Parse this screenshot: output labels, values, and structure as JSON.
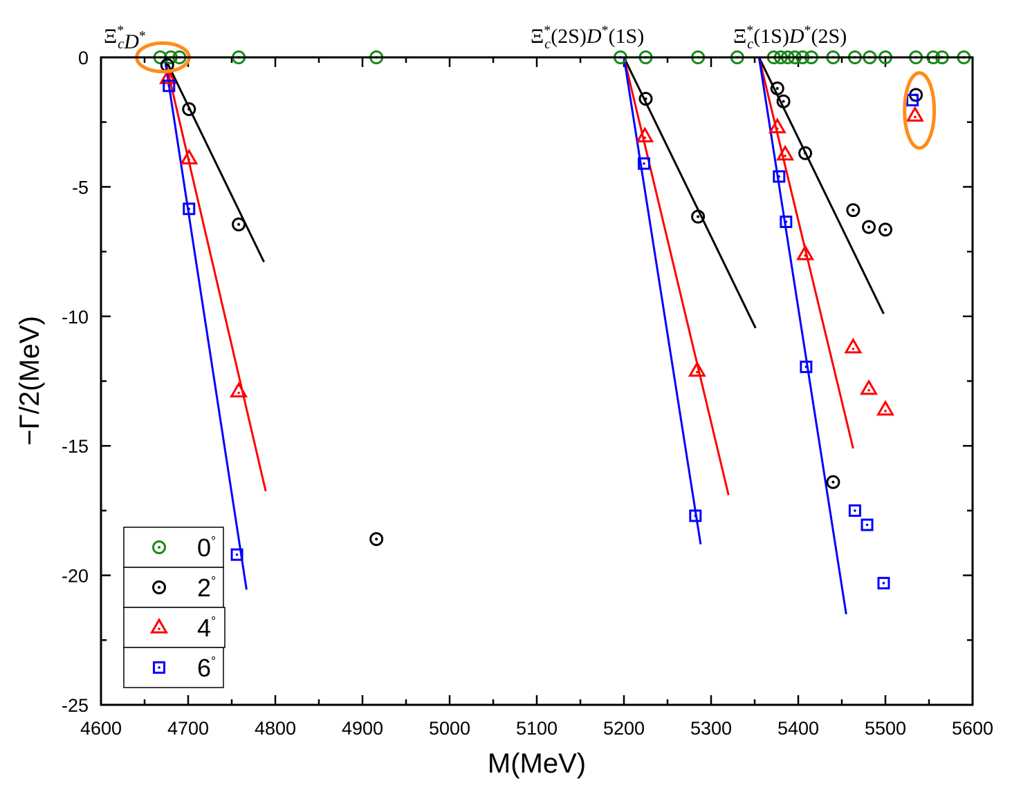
{
  "chart_data": {
    "type": "scatter",
    "title": "",
    "xlabel": "M(MeV)",
    "ylabel": "−Γ/2(MeV)",
    "xlim": [
      4600,
      5600
    ],
    "ylim": [
      -25,
      0
    ],
    "xticks": [
      4600,
      4700,
      4800,
      4900,
      5000,
      5100,
      5200,
      5300,
      5400,
      5500,
      5600
    ],
    "xtick_labels": [
      "4600",
      "4700",
      "4800",
      "4900",
      "5000",
      "5100",
      "5200",
      "5300",
      "5400",
      "5500",
      "5600"
    ],
    "yticks": [
      0,
      -5,
      -10,
      -15,
      -20,
      -25
    ],
    "ytick_labels": [
      "0",
      "-5",
      "-10",
      "-15",
      "-20",
      "-25"
    ],
    "grid": false,
    "legend_position": "bottom-left",
    "colors": {
      "0": "#1a8a1a",
      "2": "#000000",
      "4": "#ff0000",
      "6": "#0000ff",
      "highlight": "#ff8c1a"
    },
    "thresholds": [
      {
        "id": "xicd",
        "label_base": "Ξ",
        "label_sub": "c",
        "label_rest": "D",
        "label_full": "Ξ*cD*",
        "m": 4673
      },
      {
        "id": "xi2s",
        "label_base": "Ξ",
        "label_sub": "c",
        "label_mid": "(2S)",
        "label_rest": "D",
        "label_tail": "(1S)",
        "label_full": "Ξ*c(2S)D*(1S)",
        "m": 5200
      },
      {
        "id": "xi1s",
        "label_base": "Ξ",
        "label_sub": "c",
        "label_mid": "(1S)",
        "label_rest": "D",
        "label_tail": "(2S)",
        "label_full": "Ξ*c(1S)D*(2S)",
        "m": 5355
      }
    ],
    "series": [
      {
        "name": "0°",
        "angle": "0",
        "marker": "circle",
        "points": [
          [
            4668,
            0
          ],
          [
            4680,
            0
          ],
          [
            4690,
            0
          ],
          [
            4758,
            0
          ],
          [
            4916,
            0
          ],
          [
            5196,
            0
          ],
          [
            5225,
            0
          ],
          [
            5285,
            0
          ],
          [
            5330,
            0
          ],
          [
            5372,
            0
          ],
          [
            5380,
            0
          ],
          [
            5388,
            0
          ],
          [
            5396,
            0
          ],
          [
            5405,
            0
          ],
          [
            5415,
            0
          ],
          [
            5440,
            0
          ],
          [
            5465,
            0
          ],
          [
            5482,
            0
          ],
          [
            5500,
            0
          ],
          [
            5535,
            0
          ],
          [
            5555,
            0
          ],
          [
            5565,
            0
          ],
          [
            5590,
            0
          ]
        ]
      },
      {
        "name": "2°",
        "angle": "2",
        "marker": "circle",
        "points": [
          [
            4676,
            -0.3
          ],
          [
            4701,
            -2.0
          ],
          [
            4758,
            -6.45
          ],
          [
            4916,
            -18.6
          ],
          [
            5225,
            -1.6
          ],
          [
            5285,
            -6.15
          ],
          [
            5376,
            -1.2
          ],
          [
            5383,
            -1.7
          ],
          [
            5408,
            -3.7
          ],
          [
            5440,
            -16.4
          ],
          [
            5463,
            -5.9
          ],
          [
            5481,
            -6.55
          ],
          [
            5500,
            -6.65
          ],
          [
            5535,
            -1.45
          ]
        ]
      },
      {
        "name": "4°",
        "angle": "4",
        "marker": "triangle",
        "points": [
          [
            4677,
            -0.8
          ],
          [
            4701,
            -3.9
          ],
          [
            4758,
            -12.9
          ],
          [
            5224,
            -3.05
          ],
          [
            5284,
            -12.1
          ],
          [
            5376,
            -2.7
          ],
          [
            5385,
            -3.75
          ],
          [
            5408,
            -7.6
          ],
          [
            5463,
            -11.2
          ],
          [
            5481,
            -12.8
          ],
          [
            5500,
            -13.6
          ],
          [
            5534,
            -2.25
          ]
        ]
      },
      {
        "name": "6°",
        "angle": "6",
        "marker": "square",
        "points": [
          [
            4678,
            -1.1
          ],
          [
            4701,
            -5.85
          ],
          [
            4756,
            -19.2
          ],
          [
            5223,
            -4.1
          ],
          [
            5282,
            -17.7
          ],
          [
            5378,
            -4.6
          ],
          [
            5386,
            -6.35
          ],
          [
            5409,
            -11.95
          ],
          [
            5465,
            -17.5
          ],
          [
            5479,
            -18.05
          ],
          [
            5498,
            -20.3
          ],
          [
            5531,
            -1.65
          ]
        ]
      }
    ],
    "lines": [
      {
        "series": "2",
        "x0": 4673,
        "y0": 0,
        "x1": 4787,
        "y1": -7.9
      },
      {
        "series": "4",
        "x0": 4673,
        "y0": 0,
        "x1": 4789,
        "y1": -16.75
      },
      {
        "series": "6",
        "x0": 4673,
        "y0": 0,
        "x1": 4767,
        "y1": -20.55
      },
      {
        "series": "2",
        "x0": 5200,
        "y0": 0,
        "x1": 5351,
        "y1": -10.45
      },
      {
        "series": "4",
        "x0": 5200,
        "y0": 0,
        "x1": 5320,
        "y1": -16.9
      },
      {
        "series": "6",
        "x0": 5200,
        "y0": 0,
        "x1": 5288,
        "y1": -18.8
      },
      {
        "series": "2",
        "x0": 5355,
        "y0": 0,
        "x1": 5498,
        "y1": -9.9
      },
      {
        "series": "4",
        "x0": 5355,
        "y0": 0,
        "x1": 5463,
        "y1": -15.1
      },
      {
        "series": "6",
        "x0": 5355,
        "y0": 0,
        "x1": 5455,
        "y1": -21.5
      }
    ],
    "highlights": [
      {
        "shape": "ellipse",
        "cx": 4671,
        "cy": 0,
        "rx_m": 30,
        "ry_g": 0.55
      },
      {
        "shape": "ellipse",
        "cx": 5539,
        "cy": -2.05,
        "rx_m": 17,
        "ry_g": 1.45
      }
    ],
    "legend": [
      {
        "series": "0",
        "label": "0",
        "sup": "°"
      },
      {
        "series": "2",
        "label": "2",
        "sup": "°"
      },
      {
        "series": "4",
        "label": "4",
        "sup": "°"
      },
      {
        "series": "6",
        "label": "6",
        "sup": "°"
      }
    ]
  }
}
